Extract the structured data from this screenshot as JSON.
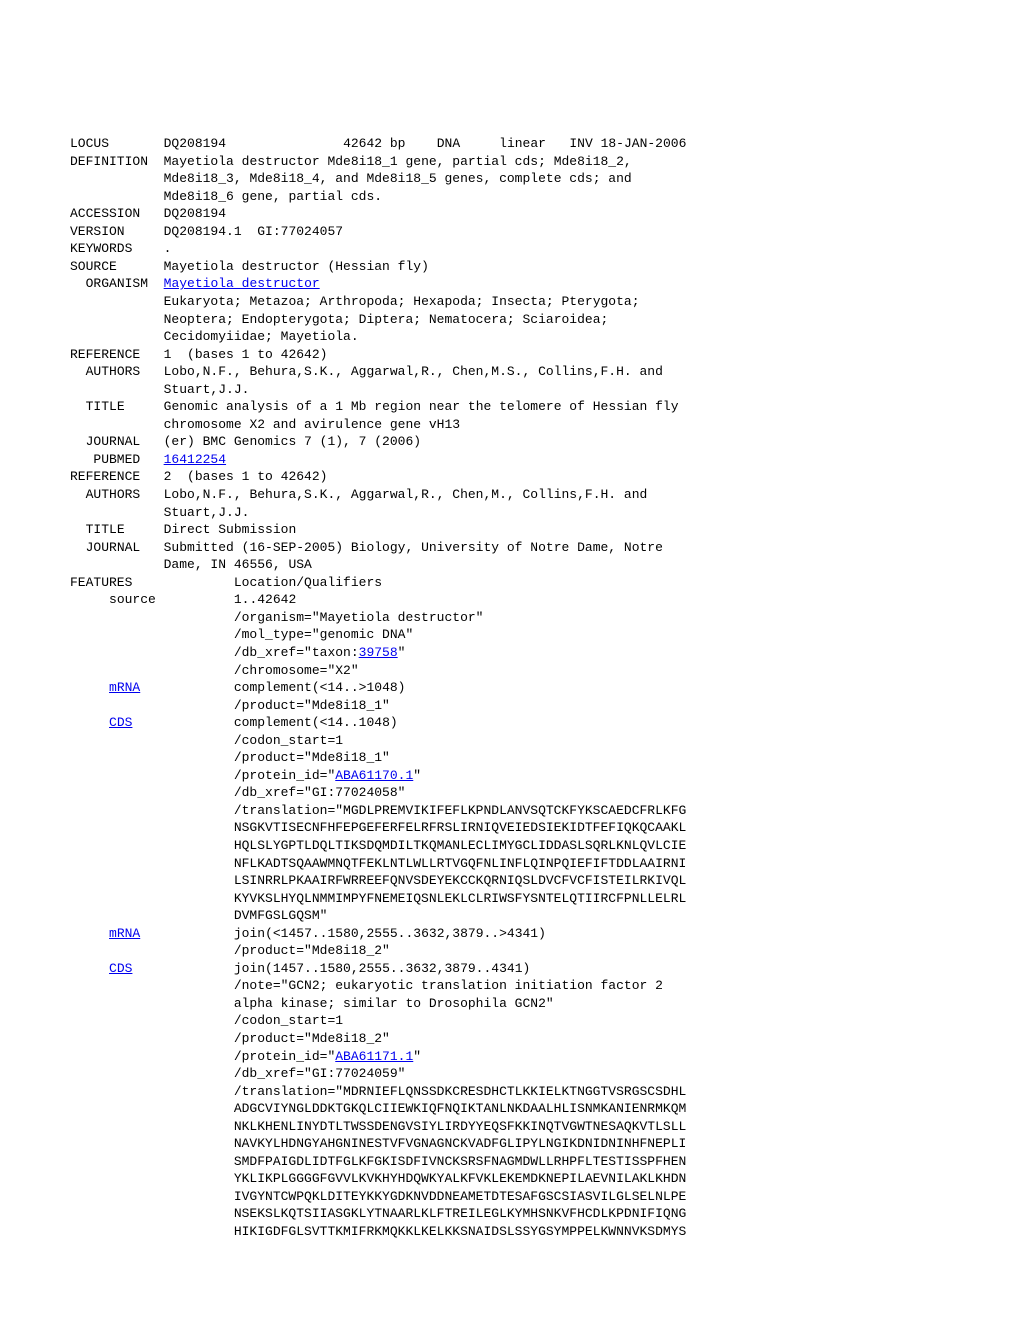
{
  "locus": {
    "name": "DQ208194",
    "length": "42642 bp",
    "moltype": "DNA",
    "topology": "linear",
    "division": "INV",
    "date": "18-JAN-2006"
  },
  "definition": [
    "Mayetiola destructor Mde8i18_1 gene, partial cds; Mde8i18_2,",
    "Mde8i18_3, Mde8i18_4, and Mde8i18_5 genes, complete cds; and",
    "Mde8i18_6 gene, partial cds."
  ],
  "accession": "DQ208194",
  "version": "DQ208194.1  GI:77024057",
  "keywords": ".",
  "source": "Mayetiola destructor (Hessian fly)",
  "organism": {
    "name": "Mayetiola destructor",
    "lineage": [
      "Eukaryota; Metazoa; Arthropoda; Hexapoda; Insecta; Pterygota;",
      "Neoptera; Endopterygota; Diptera; Nematocera; Sciaroidea;",
      "Cecidomyiidae; Mayetiola."
    ]
  },
  "ref1": {
    "header": "1  (bases 1 to 42642)",
    "authors": [
      "Lobo,N.F., Behura,S.K., Aggarwal,R., Chen,M.S., Collins,F.H. and",
      "Stuart,J.J."
    ],
    "title": [
      "Genomic analysis of a 1 Mb region near the telomere of Hessian fly",
      "chromosome X2 and avirulence gene vH13"
    ],
    "journal": "(er) BMC Genomics 7 (1), 7 (2006)",
    "pubmed": "16412254"
  },
  "ref2": {
    "header": "2  (bases 1 to 42642)",
    "authors": [
      "Lobo,N.F., Behura,S.K., Aggarwal,R., Chen,M., Collins,F.H. and",
      "Stuart,J.J."
    ],
    "title": "Direct Submission",
    "journal": [
      "Submitted (16-SEP-2005) Biology, University of Notre Dame, Notre",
      "Dame, IN 46556, USA"
    ]
  },
  "features_header": "Location/Qualifiers",
  "source_feature": {
    "location": "1..42642",
    "organism": "/organism=\"Mayetiola destructor\"",
    "mol_type": "/mol_type=\"genomic DNA\"",
    "db_xref_pre": "/db_xref=\"taxon:",
    "taxon": "39758",
    "db_xref_post": "\"",
    "chromosome": "/chromosome=\"X2\""
  },
  "mrna1": {
    "location": "complement(<14..>1048)",
    "product": "/product=\"Mde8i18_1\""
  },
  "cds1": {
    "location": "complement(<14..1048)",
    "codon_start": "/codon_start=1",
    "product": "/product=\"Mde8i18_1\"",
    "protein_id_pre": "/protein_id=\"",
    "protein_id": "ABA61170.1",
    "protein_id_post": "\"",
    "db_xref": "/db_xref=\"GI:77024058\"",
    "translation": [
      "/translation=\"MGDLPREMVIKIFEFLKPNDLANVSQTCKFYKSCAEDCFRLKFG",
      "NSGKVTISECNFHFEPGEFERFELRFRSLIRNIQVEIEDSIEKIDTFEFIQKQCAAKL",
      "HQLSLYGPTLDQLTIKSDQMDILTKQMANLECLIMYGCLIDDASLSQRLKNLQVLCIE",
      "NFLKADTSQAAWMNQTFEKLNTLWLLRTVGQFNLINFLQINPQIEFIFTDDLAAIRNI",
      "LSINRRLPKAAIRFWRREEFQNVSDEYEKCCKQRNIQSLDVCFVCFISTEILRKIVQL",
      "KYVKSLHYQLNMMIMPYFNEMEIQSNLEKLCLRIWSFYSNTELQTIIRCFPNLLELRL",
      "DVMFGSLGQSM\""
    ]
  },
  "mrna2": {
    "location": "join(<1457..1580,2555..3632,3879..>4341)",
    "product": "/product=\"Mde8i18_2\""
  },
  "cds2": {
    "location": "join(1457..1580,2555..3632,3879..4341)",
    "note": [
      "/note=\"GCN2; eukaryotic translation initiation factor 2",
      "alpha kinase; similar to Drosophila GCN2\""
    ],
    "codon_start": "/codon_start=1",
    "product": "/product=\"Mde8i18_2\"",
    "protein_id_pre": "/protein_id=\"",
    "protein_id": "ABA61171.1",
    "protein_id_post": "\"",
    "db_xref": "/db_xref=\"GI:77024059\"",
    "translation": [
      "/translation=\"MDRNIEFLQNSSDKCRESDHCTLKKIELKTNGGTVSRGSCSDHL",
      "ADGCVIYNGLDDKTGKQLCIIEWKIQFNQIKTANLNKDAALHLISNMKANIENRMKQM",
      "NKLKHENLINYDTLTWSSDENGVSIYLIRDYYEQSFKKINQTVGWTNESAQKVTLSLL",
      "NAVKYLHDNGYAHGNINESTVFVGNAGNCKVADFGLIPYLNGIKDNIDNINHFNEPLI",
      "SMDFPAIGDLIDTFGLKFGKISDFIVNCKSRSFNAGMDWLLRHPFLTESTISSPFHEN",
      "YKLIKPLGGGGFGVVLKVKHYHDQWKYALKFVKLEKEMDKNEPILAEVNILAKLKHDN",
      "IVGYNTCWPQKLDITEYKKYGDKNVDDNEAMETDTESAFGSCSIASVILGLSELNLPE",
      "NSEKSLKQTSIIASGKLYTNAARLKLFTREILEGLKYMHSNKVFHCDLKPDNIFIQNG",
      "HIKIGDFGLSVTTKMIFRKMQKKLKELKKSNAIDSLSSYGSYMPPELKWNNVKSDMYS"
    ]
  },
  "labels": {
    "LOCUS": "LOCUS",
    "DEFINITION": "DEFINITION",
    "ACCESSION": "ACCESSION",
    "VERSION": "VERSION",
    "KEYWORDS": "KEYWORDS",
    "SOURCE": "SOURCE",
    "ORGANISM": "ORGANISM",
    "REFERENCE": "REFERENCE",
    "AUTHORS": "AUTHORS",
    "TITLE": "TITLE",
    "JOURNAL": "JOURNAL",
    "PUBMED": "PUBMED",
    "FEATURES": "FEATURES",
    "source": "source",
    "mRNA": "mRNA",
    "CDS": "CDS"
  }
}
